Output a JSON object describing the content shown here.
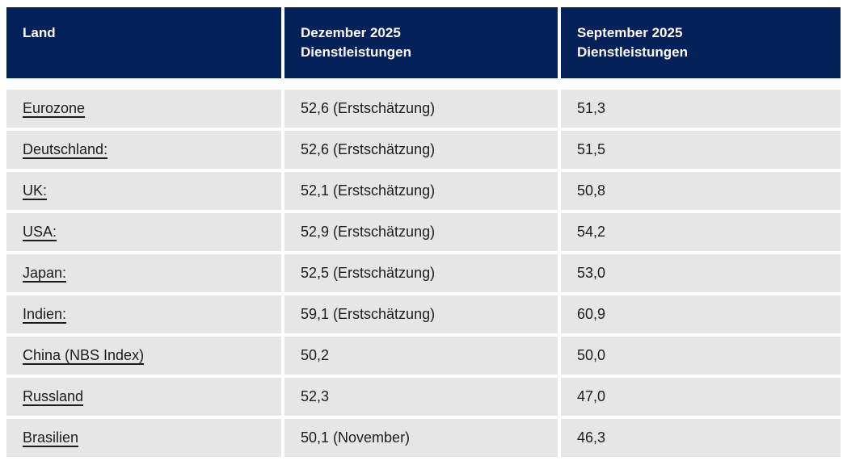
{
  "colors": {
    "header_bg": "#04215a",
    "header_text": "#ffffff",
    "row_bg": "#e6e6e6",
    "body_text": "#1c1c1c",
    "separator": "#ffffff"
  },
  "table": {
    "columns": [
      {
        "label": "Land",
        "line1": "Land",
        "line2": ""
      },
      {
        "label": "Dezember 2025 Dienstleistungen",
        "line1": "Dezember 2025",
        "line2": "Dienstleistungen"
      },
      {
        "label": "September 2025 Dienstleistungen",
        "line1": "September 2025",
        "line2": "Dienstleistungen"
      }
    ],
    "rows": [
      {
        "land": "Eurozone",
        "dezember": "52,6 (Erstschätzung)",
        "september": "51,3"
      },
      {
        "land": "Deutschland:",
        "dezember": "52,6 (Erstschätzung)",
        "september": "51,5"
      },
      {
        "land": "UK:",
        "dezember": "52,1 (Erstschätzung)",
        "september": "50,8"
      },
      {
        "land": "USA:",
        "dezember": "52,9 (Erstschätzung)",
        "september": "54,2"
      },
      {
        "land": "Japan:",
        "dezember": "52,5 (Erstschätzung)",
        "september": "53,0"
      },
      {
        "land": "Indien:",
        "dezember": "59,1 (Erstschätzung)",
        "september": "60,9"
      },
      {
        "land": "China (NBS Index)",
        "dezember": "50,2",
        "september": "50,0"
      },
      {
        "land": "Russland",
        "dezember": "52,3",
        "september": "47,0"
      },
      {
        "land": "Brasilien",
        "dezember": "50,1 (November)",
        "september": "46,3"
      }
    ]
  },
  "chart_data": {
    "type": "table",
    "columns": [
      "Land",
      "Dezember 2025 Dienstleistungen",
      "September 2025 Dienstleistungen"
    ],
    "rows": [
      [
        "Eurozone",
        "52,6 (Erstschätzung)",
        "51,3"
      ],
      [
        "Deutschland:",
        "52,6 (Erstschätzung)",
        "51,5"
      ],
      [
        "UK:",
        "52,1 (Erstschätzung)",
        "50,8"
      ],
      [
        "USA:",
        "52,9 (Erstschätzung)",
        "54,2"
      ],
      [
        "Japan:",
        "52,5 (Erstschätzung)",
        "53,0"
      ],
      [
        "Indien:",
        "59,1 (Erstschätzung)",
        "60,9"
      ],
      [
        "China (NBS Index)",
        "50,2",
        "50,0"
      ],
      [
        "Russland",
        "52,3",
        "47,0"
      ],
      [
        "Brasilien",
        "50,1 (November)",
        "46,3"
      ]
    ],
    "values_dezember_numeric": [
      52.6,
      52.6,
      52.1,
      52.9,
      52.5,
      59.1,
      50.2,
      52.3,
      50.1
    ],
    "values_september_numeric": [
      51.3,
      51.5,
      50.8,
      54.2,
      53.0,
      60.9,
      50.0,
      47.0,
      46.3
    ]
  }
}
